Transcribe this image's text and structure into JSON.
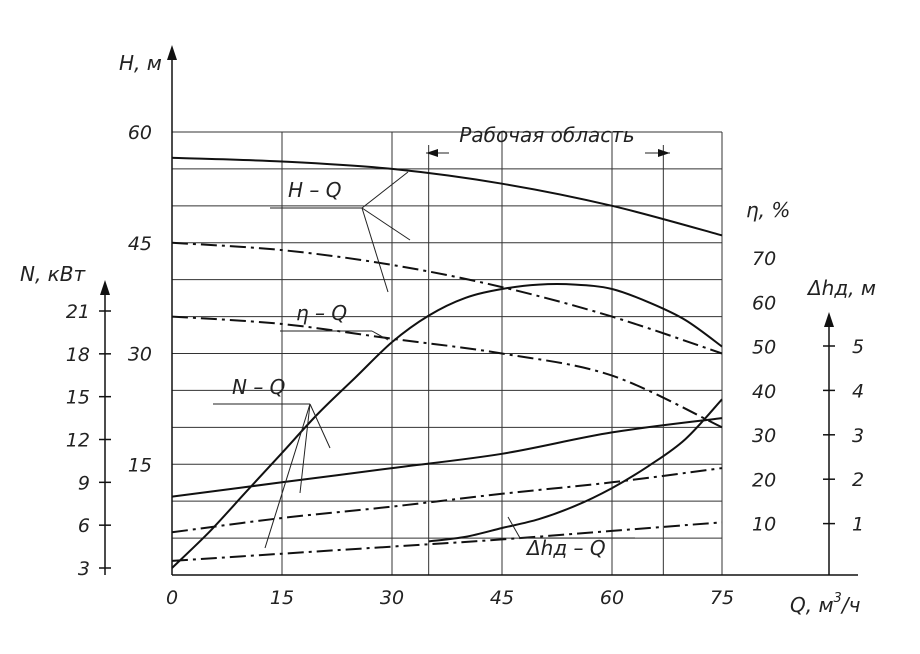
{
  "chart_data": {
    "type": "line",
    "title": "",
    "xlabel": "Q, м³/ч",
    "x_label_base": "Q, м",
    "x_label_sup": "3",
    "x_label_tail": "/ч",
    "xlim": [
      0,
      75
    ],
    "x_ticks": [
      "0",
      "15",
      "30",
      "45",
      "60",
      "75"
    ],
    "axes": {
      "H": {
        "label": "H, м",
        "range": [
          0,
          60
        ],
        "ticks": [
          "0",
          "15",
          "30",
          "45",
          "60"
        ]
      },
      "N": {
        "label": "N, кВт",
        "range": [
          3,
          21
        ],
        "ticks": [
          "3",
          "6",
          "9",
          "12",
          "15",
          "18",
          "21"
        ]
      },
      "eta": {
        "label": "η, %",
        "range": [
          0,
          70
        ],
        "ticks": [
          "10",
          "20",
          "30",
          "40",
          "50",
          "60",
          "70"
        ]
      },
      "dh": {
        "label": "Δhд, м",
        "range": [
          0,
          5
        ],
        "ticks": [
          "1",
          "2",
          "3",
          "4",
          "5"
        ]
      }
    },
    "working_region": {
      "label": "Рабочая область",
      "x_range": [
        35,
        67
      ]
    },
    "curve_labels": {
      "HQ": "H – Q",
      "etaQ": "η – Q",
      "NQ": "N – Q",
      "dhQ": "Δhд – Q"
    },
    "series": [
      {
        "name": "H – Q",
        "axis": "H",
        "style": "solid",
        "x": [
          0,
          15,
          30,
          45,
          60,
          75
        ],
        "y": [
          56.5,
          56,
          55,
          53,
          50,
          46
        ]
      },
      {
        "name": "H – Q",
        "axis": "H",
        "style": "dashdot",
        "x": [
          0,
          15,
          30,
          45,
          60,
          75
        ],
        "y": [
          45,
          44,
          42,
          39,
          35,
          30
        ]
      },
      {
        "name": "H – Q",
        "axis": "H",
        "style": "dashdot",
        "x": [
          0,
          15,
          30,
          45,
          60,
          75
        ],
        "y": [
          35,
          34,
          32,
          30,
          27,
          20
        ]
      },
      {
        "name": "η – Q",
        "axis": "eta",
        "style": "solid",
        "x": [
          0,
          5,
          10,
          15,
          20,
          25,
          30,
          35,
          40,
          45,
          50,
          55,
          60,
          65,
          70,
          75
        ],
        "y": [
          0,
          8,
          17,
          26,
          35,
          43,
          51,
          57,
          61,
          63,
          64,
          64,
          63,
          60,
          56,
          50
        ]
      },
      {
        "name": "N – Q",
        "axis": "N",
        "style": "solid",
        "x": [
          0,
          15,
          30,
          45,
          60,
          75
        ],
        "y": [
          8,
          9,
          10,
          11,
          12.5,
          13.5
        ]
      },
      {
        "name": "N – Q",
        "axis": "N",
        "style": "dashdot",
        "x": [
          0,
          15,
          30,
          45,
          60,
          75
        ],
        "y": [
          5.5,
          6.5,
          7.3,
          8.2,
          9,
          10
        ]
      },
      {
        "name": "N – Q",
        "axis": "N",
        "style": "dashdot",
        "x": [
          0,
          15,
          30,
          45,
          60,
          75
        ],
        "y": [
          3.5,
          4,
          4.5,
          5,
          5.6,
          6.2
        ]
      },
      {
        "name": "Δhд – Q",
        "axis": "dh",
        "style": "solid",
        "x": [
          35,
          40,
          45,
          50,
          55,
          60,
          65,
          70,
          75
        ],
        "y": [
          0.6,
          0.7,
          0.9,
          1.1,
          1.4,
          1.8,
          2.3,
          2.9,
          3.8
        ]
      }
    ],
    "grid": true,
    "legend": "none"
  }
}
